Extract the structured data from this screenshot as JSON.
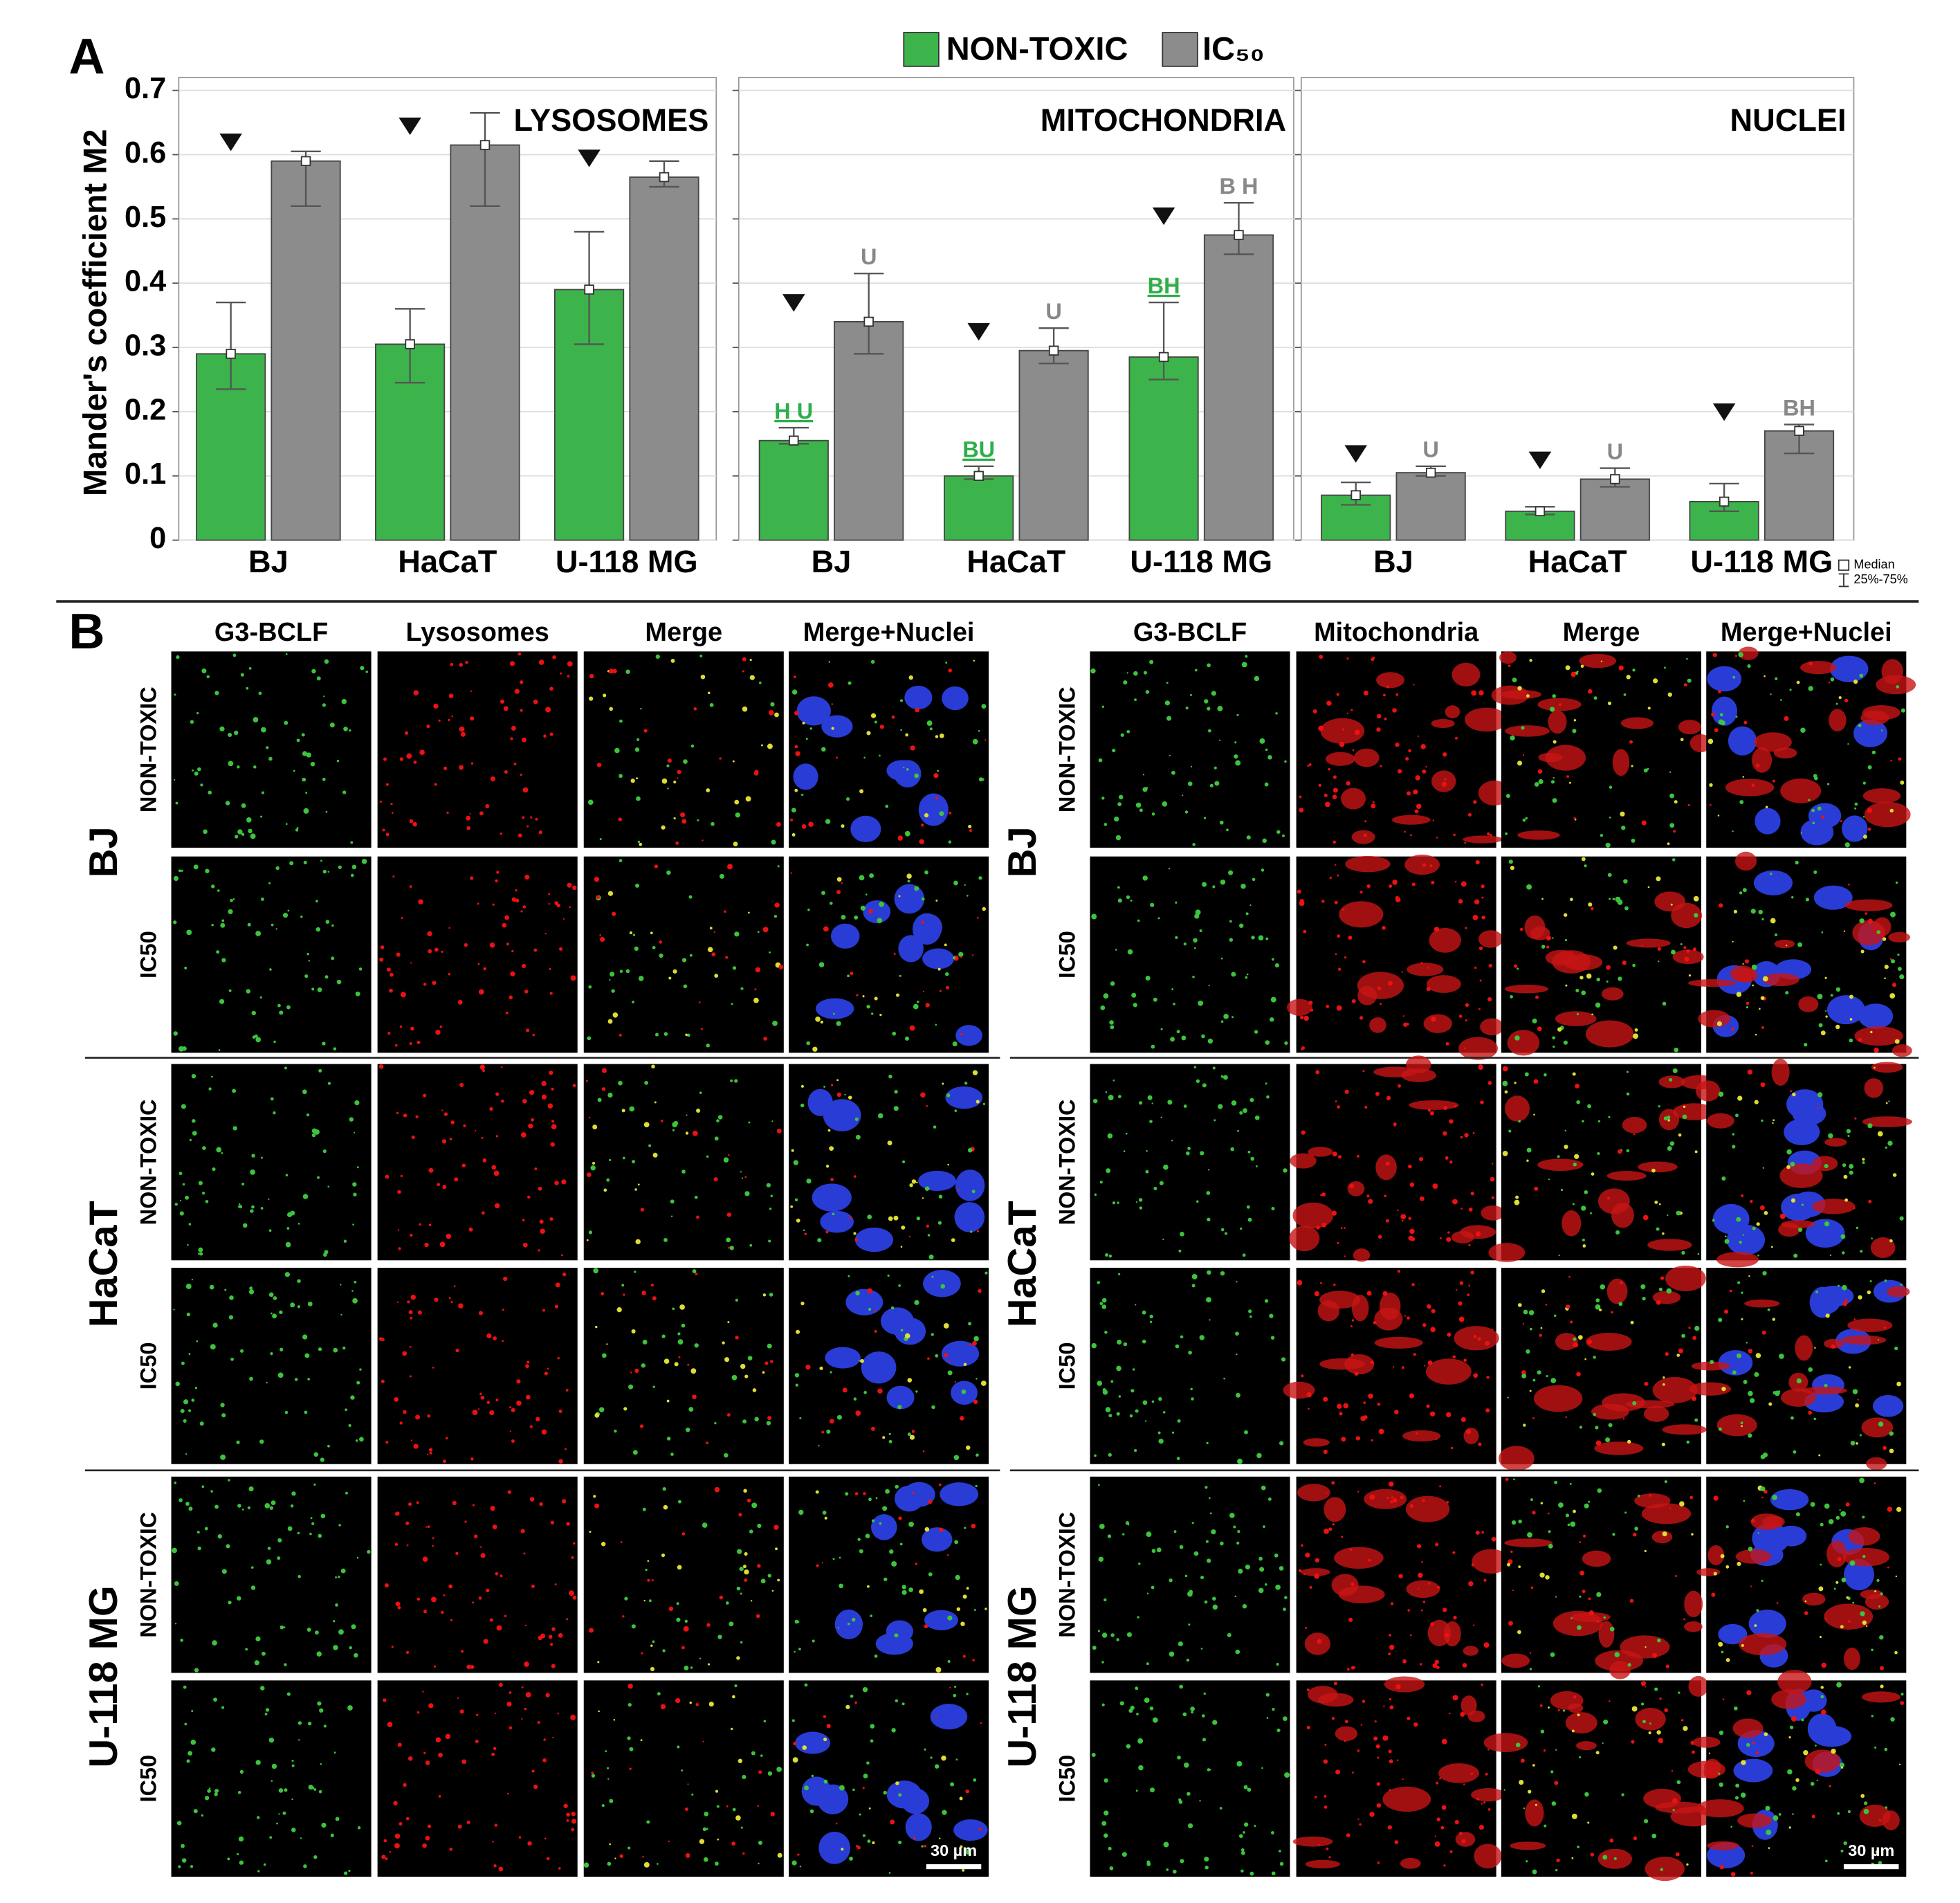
{
  "chart_data": [
    {
      "type": "bar",
      "title": "LYSOSOMES",
      "y_label": "Mander's coefficient M2",
      "categories": [
        "BJ",
        "HaCaT",
        "U-118 MG"
      ],
      "series": [
        {
          "name": "NON-TOXIC",
          "color": "#3cb44b",
          "values": [
            0.29,
            0.305,
            0.39
          ],
          "lower": [
            0.235,
            0.245,
            0.305
          ],
          "upper": [
            0.37,
            0.36,
            0.48
          ]
        },
        {
          "name": "IC₅₀",
          "color": "#8c8c8c",
          "values": [
            0.59,
            0.615,
            0.565
          ],
          "lower": [
            0.52,
            0.52,
            0.55
          ],
          "upper": [
            0.605,
            0.665,
            0.59
          ]
        }
      ],
      "ylim": [
        0,
        0.72
      ],
      "yticks": [
        0,
        0.1,
        0.2,
        0.3,
        0.4,
        0.5,
        0.6,
        0.7
      ],
      "grid": true
    },
    {
      "type": "bar",
      "title": "MITOCHONDRIA",
      "categories": [
        "BJ",
        "HaCaT",
        "U-118 MG"
      ],
      "series": [
        {
          "color": "#3cb44b",
          "values": [
            0.155,
            0.1,
            0.285
          ],
          "lower": [
            0.15,
            0.095,
            0.25
          ],
          "upper": [
            0.175,
            0.115,
            0.37
          ],
          "annotations": [
            "H U",
            "BU",
            "BH"
          ]
        },
        {
          "color": "#8c8c8c",
          "values": [
            0.34,
            0.295,
            0.475
          ],
          "lower": [
            0.29,
            0.275,
            0.445
          ],
          "upper": [
            0.415,
            0.33,
            0.525
          ],
          "annotations": [
            "U",
            "U",
            "B H"
          ]
        }
      ],
      "ylim": [
        0,
        0.72
      ],
      "yticks": [
        0,
        0.1,
        0.2,
        0.3,
        0.4,
        0.5,
        0.6,
        0.7
      ],
      "grid": true
    },
    {
      "type": "bar",
      "title": "NUCLEI",
      "categories": [
        "BJ",
        "HaCaT",
        "U-118 MG"
      ],
      "series": [
        {
          "color": "#3cb44b",
          "values": [
            0.07,
            0.045,
            0.06
          ],
          "lower": [
            0.055,
            0.04,
            0.045
          ],
          "upper": [
            0.09,
            0.052,
            0.088
          ]
        },
        {
          "color": "#8c8c8c",
          "values": [
            0.105,
            0.095,
            0.17
          ],
          "lower": [
            0.1,
            0.083,
            0.135
          ],
          "upper": [
            0.115,
            0.112,
            0.18
          ],
          "annotations": [
            "U",
            "U",
            "BH"
          ]
        }
      ],
      "ylim": [
        0,
        0.72
      ],
      "yticks": [
        0,
        0.1,
        0.2,
        0.3,
        0.4,
        0.5,
        0.6,
        0.7
      ],
      "grid": true
    }
  ],
  "legend_note": {
    "median": "Median",
    "range": "25%-75%"
  },
  "panel_labels": [
    "A",
    "B"
  ],
  "panel_b": {
    "halves": [
      {
        "columns": [
          "G3-BCLF",
          "Lysosomes",
          "Merge",
          "Merge+Nuclei"
        ]
      },
      {
        "columns": [
          "G3-BCLF",
          "Mitochondria",
          "Merge",
          "Merge+Nuclei"
        ]
      }
    ],
    "cell_lines": [
      "BJ",
      "HaCaT",
      "U-118 MG"
    ],
    "conditions": [
      "NON-TOXIC",
      "IC50"
    ],
    "scale_bar": "30 µm"
  }
}
